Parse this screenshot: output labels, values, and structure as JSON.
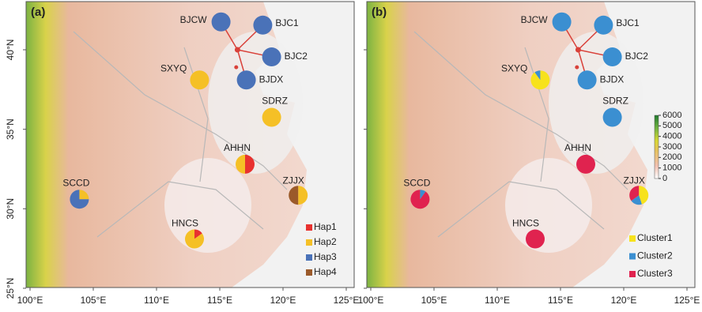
{
  "axes": {
    "xticks": [
      {
        "value": 100,
        "label": "100°E"
      },
      {
        "value": 105,
        "label": "105°E"
      },
      {
        "value": 110,
        "label": "110°E"
      },
      {
        "value": 115,
        "label": "115°E"
      },
      {
        "value": 120,
        "label": "120°E"
      },
      {
        "value": 125,
        "label": "125°E"
      }
    ],
    "yticks": [
      {
        "value": 40,
        "label": "40°N"
      },
      {
        "value": 35,
        "label": "35°N"
      },
      {
        "value": 30,
        "label": "30°N"
      },
      {
        "value": 25,
        "label": "25°N"
      }
    ]
  },
  "panels": [
    {
      "label": "(a)",
      "legend": [
        {
          "name": "Hap1",
          "color": "#e8312f"
        },
        {
          "name": "Hap2",
          "color": "#f5c026"
        },
        {
          "name": "Hap3",
          "color": "#4a72b8"
        },
        {
          "name": "Hap4",
          "color": "#9b5a2a"
        }
      ],
      "sites": [
        {
          "name": "BJCW",
          "lon": 115.1,
          "lat": 41.75,
          "values": [
            0,
            0,
            100,
            0
          ]
        },
        {
          "name": "BJC1",
          "lon": 118.4,
          "lat": 41.55,
          "values": [
            0,
            0,
            100,
            0
          ]
        },
        {
          "name": "BJC2",
          "lon": 119.1,
          "lat": 39.55,
          "values": [
            0,
            0,
            100,
            0
          ]
        },
        {
          "name": "BJDX",
          "lon": 117.1,
          "lat": 38.1,
          "values": [
            0,
            0,
            100,
            0
          ]
        },
        {
          "name": "SXYQ",
          "lon": 113.4,
          "lat": 38.1,
          "values": [
            0,
            100,
            0,
            0
          ]
        },
        {
          "name": "SDRZ",
          "lon": 119.1,
          "lat": 35.75,
          "values": [
            0,
            100,
            0,
            0
          ]
        },
        {
          "name": "AHHN",
          "lon": 117.0,
          "lat": 32.8,
          "values": [
            50,
            50,
            0,
            0
          ]
        },
        {
          "name": "ZJJX",
          "lon": 121.2,
          "lat": 30.85,
          "values": [
            0,
            50,
            0,
            50
          ]
        },
        {
          "name": "SCCD",
          "lon": 103.9,
          "lat": 30.6,
          "values": [
            0,
            25,
            75,
            0
          ]
        },
        {
          "name": "HNCS",
          "lon": 113.0,
          "lat": 28.1,
          "values": [
            15,
            85,
            0,
            0
          ]
        }
      ]
    },
    {
      "label": "(b)",
      "legend": [
        {
          "name": "Cluster1",
          "color": "#f7e21c"
        },
        {
          "name": "Cluster2",
          "color": "#3b8fd1"
        },
        {
          "name": "Cluster3",
          "color": "#e0234f"
        }
      ],
      "sites": [
        {
          "name": "BJCW",
          "lon": 115.1,
          "lat": 41.75,
          "values": [
            0,
            100,
            0
          ]
        },
        {
          "name": "BJC1",
          "lon": 118.4,
          "lat": 41.55,
          "values": [
            0,
            100,
            0
          ]
        },
        {
          "name": "BJC2",
          "lon": 119.1,
          "lat": 39.55,
          "values": [
            0,
            100,
            0
          ]
        },
        {
          "name": "BJDX",
          "lon": 117.1,
          "lat": 38.1,
          "values": [
            0,
            100,
            0
          ]
        },
        {
          "name": "SXYQ",
          "lon": 113.4,
          "lat": 38.1,
          "values": [
            90,
            10,
            0
          ]
        },
        {
          "name": "SDRZ",
          "lon": 119.1,
          "lat": 35.75,
          "values": [
            0,
            100,
            0
          ]
        },
        {
          "name": "AHHN",
          "lon": 117.0,
          "lat": 32.8,
          "values": [
            0,
            0,
            100
          ]
        },
        {
          "name": "ZJJX",
          "lon": 121.2,
          "lat": 30.85,
          "values": [
            45,
            20,
            35
          ]
        },
        {
          "name": "SCCD",
          "lon": 103.9,
          "lat": 30.6,
          "values": [
            0,
            10,
            90
          ]
        },
        {
          "name": "HNCS",
          "lon": 113.0,
          "lat": 28.1,
          "values": [
            0,
            0,
            100
          ]
        }
      ]
    }
  ],
  "colorbar": {
    "ticks": [
      0,
      1000,
      2000,
      3000,
      4000,
      5000,
      6000
    ]
  }
}
